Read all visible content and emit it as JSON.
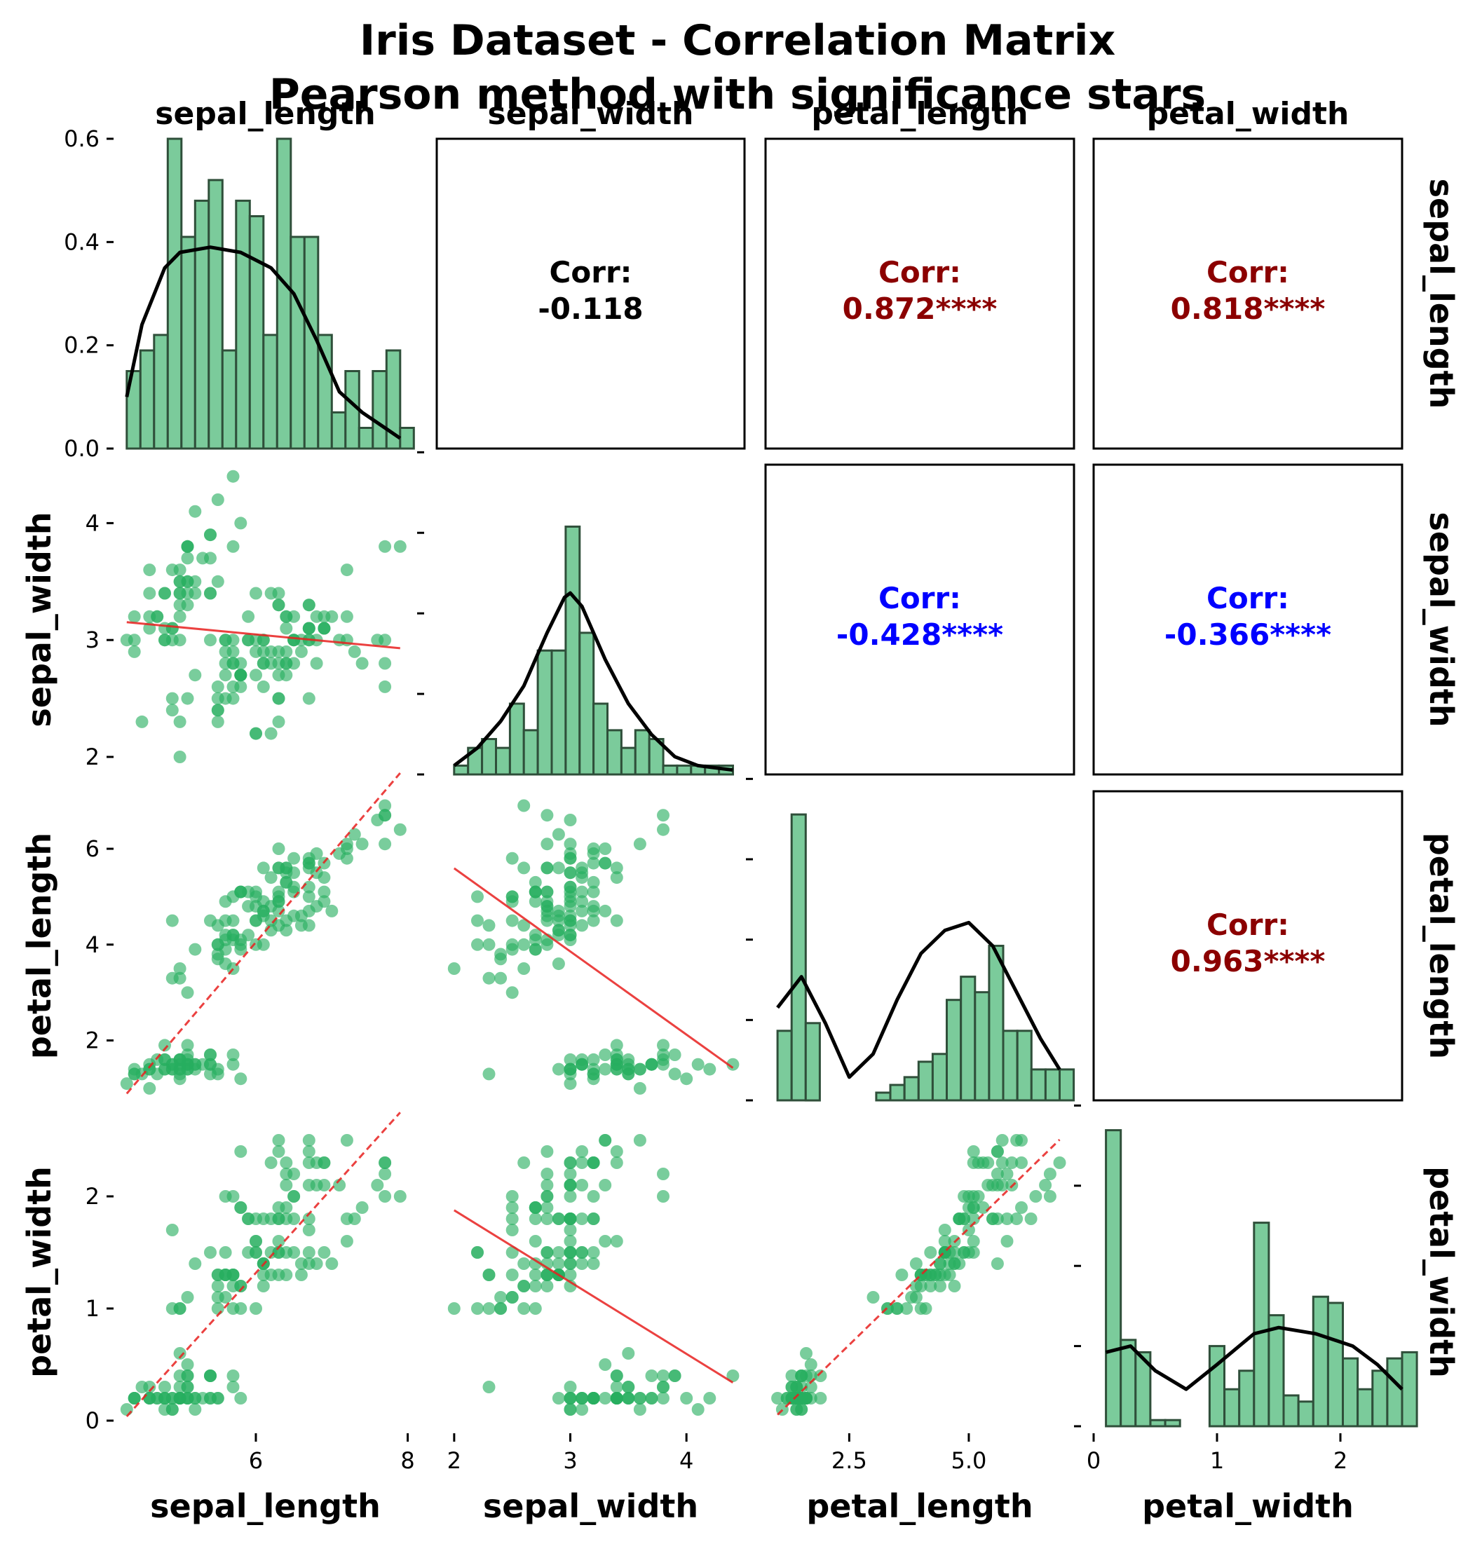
{
  "colors": {
    "point": "#27ae60",
    "bar_fill": "#7bcb9b",
    "bar_edge": "#2f4f3a",
    "kde": "#000000",
    "fit": "#e8201e",
    "positive": "#8b0000",
    "negative": "#0000ff",
    "neutral": "#000000"
  },
  "chart_data": {
    "type": "scatter",
    "title": "Iris Dataset - Correlation Matrix",
    "subtitle": "Pearson method with significance stars",
    "variables": [
      "sepal_length",
      "sepal_width",
      "petal_length",
      "petal_width"
    ],
    "corr_label": "Corr:",
    "correlations": [
      {
        "row": "sepal_length",
        "col": "sepal_width",
        "value": "-0.118",
        "sign": "neutral"
      },
      {
        "row": "sepal_length",
        "col": "petal_length",
        "value": "0.872****",
        "sign": "positive"
      },
      {
        "row": "sepal_length",
        "col": "petal_width",
        "value": "0.818****",
        "sign": "positive"
      },
      {
        "row": "sepal_width",
        "col": "petal_length",
        "value": "-0.428****",
        "sign": "negative"
      },
      {
        "row": "sepal_width",
        "col": "petal_width",
        "value": "-0.366****",
        "sign": "negative"
      },
      {
        "row": "petal_length",
        "col": "petal_width",
        "value": "0.963****",
        "sign": "positive"
      }
    ],
    "axes": {
      "sepal_length": {
        "range": [
          4.2,
          8.05
        ],
        "ticks": [
          6,
          8
        ],
        "tick_labels": [
          "6",
          "8"
        ]
      },
      "sepal_width": {
        "range": [
          1.85,
          4.5
        ],
        "ticks": [
          2,
          3,
          4
        ],
        "tick_labels": [
          "2",
          "3",
          "4"
        ]
      },
      "petal_length": {
        "range": [
          0.75,
          7.2
        ],
        "ticks": [
          2,
          4,
          6
        ],
        "tick_labels": [
          "2",
          "4",
          "6"
        ],
        "x_ticks": [
          2.5,
          5.0
        ],
        "x_tick_labels": [
          "2.5",
          "5.0"
        ]
      },
      "petal_width": {
        "range": [
          -0.05,
          2.7
        ],
        "ticks": [
          0,
          1,
          2
        ],
        "tick_labels": [
          "0",
          "1",
          "2"
        ],
        "x_range": [
          0,
          2.5
        ]
      }
    },
    "histograms": {
      "sepal_length": {
        "ymax": 0.6,
        "yticks": [
          0.0,
          0.2,
          0.4,
          0.6
        ],
        "ytick_labels": [
          "0.0",
          "0.2",
          "0.4",
          "0.6"
        ],
        "bins": [
          4.3,
          4.48,
          4.66,
          4.84,
          5.02,
          5.2,
          5.38,
          5.56,
          5.74,
          5.92,
          6.1,
          6.28,
          6.46,
          6.64,
          6.82,
          7.0,
          7.18,
          7.36,
          7.54,
          7.72,
          7.9
        ],
        "density": [
          0.15,
          0.19,
          0.22,
          0.6,
          0.41,
          0.48,
          0.52,
          0.19,
          0.48,
          0.45,
          0.22,
          0.6,
          0.41,
          0.41,
          0.22,
          0.07,
          0.15,
          0.04,
          0.15,
          0.19,
          0.04
        ],
        "kde_x": [
          4.3,
          4.5,
          4.8,
          5.0,
          5.4,
          5.8,
          6.2,
          6.5,
          6.8,
          7.1,
          7.4,
          7.7,
          7.9
        ],
        "kde_y": [
          0.1,
          0.24,
          0.35,
          0.38,
          0.39,
          0.38,
          0.35,
          0.3,
          0.21,
          0.11,
          0.07,
          0.04,
          0.02
        ]
      },
      "sepal_width": {
        "ymax": 35,
        "bins": [
          2.0,
          2.12,
          2.24,
          2.36,
          2.48,
          2.6,
          2.72,
          2.84,
          2.96,
          3.08,
          3.2,
          3.32,
          3.44,
          3.56,
          3.68,
          3.8,
          3.92,
          4.04,
          4.16,
          4.28,
          4.4
        ],
        "density": [
          1,
          3,
          4,
          3,
          8,
          5,
          14,
          14,
          28,
          16,
          8,
          5,
          3,
          5,
          4,
          1,
          1,
          1,
          1,
          1
        ],
        "kde_x": [
          2.0,
          2.2,
          2.4,
          2.6,
          2.8,
          2.95,
          3.0,
          3.1,
          3.3,
          3.5,
          3.7,
          3.9,
          4.1,
          4.4
        ],
        "kde_y": [
          1,
          3,
          6,
          10,
          16,
          20,
          20.5,
          19,
          13,
          8,
          4.5,
          2,
          1,
          0.5
        ]
      },
      "petal_length": {
        "ymax": 40,
        "bins": [
          1.0,
          1.295,
          1.59,
          1.885,
          2.18,
          2.475,
          2.77,
          3.065,
          3.36,
          3.655,
          3.95,
          4.245,
          4.54,
          4.835,
          5.13,
          5.425,
          5.72,
          6.015,
          6.31,
          6.605,
          6.9
        ],
        "density": [
          9,
          37,
          10,
          0,
          0,
          0,
          0,
          1,
          2,
          3,
          5,
          6,
          13,
          16,
          14,
          20,
          9,
          9,
          4,
          4,
          4
        ],
        "kde_x": [
          1.0,
          1.5,
          2.0,
          2.5,
          3.0,
          3.5,
          4.0,
          4.5,
          5.0,
          5.5,
          6.0,
          6.5,
          6.9
        ],
        "kde_y": [
          12,
          16,
          10,
          3,
          6,
          13,
          19,
          22,
          23,
          20,
          14,
          8,
          4
        ]
      },
      "petal_width": {
        "ymax": 50,
        "bins": [
          0.1,
          0.22,
          0.34,
          0.46,
          0.58,
          0.7,
          0.82,
          0.94,
          1.06,
          1.18,
          1.3,
          1.42,
          1.54,
          1.66,
          1.78,
          1.9,
          2.02,
          2.14,
          2.26,
          2.38,
          2.5
        ],
        "density": [
          48,
          14,
          12,
          1,
          1,
          0,
          0,
          13,
          6,
          9,
          33,
          18,
          5,
          4,
          21,
          20,
          11,
          6,
          9,
          11,
          12
        ],
        "kde_x": [
          0.1,
          0.3,
          0.5,
          0.75,
          1.0,
          1.3,
          1.5,
          1.8,
          2.1,
          2.3,
          2.5
        ],
        "kde_y": [
          12,
          13,
          9,
          6,
          10,
          15,
          16,
          15,
          13,
          10,
          6
        ]
      }
    },
    "scatter_points": {
      "sepal_length": [
        5.1,
        4.9,
        4.7,
        4.6,
        5.0,
        5.4,
        4.6,
        5.0,
        4.4,
        4.9,
        5.4,
        4.8,
        4.8,
        4.3,
        5.8,
        5.7,
        5.4,
        5.1,
        5.7,
        5.1,
        5.4,
        5.1,
        4.6,
        5.1,
        4.8,
        5.0,
        5.0,
        5.2,
        5.2,
        4.7,
        4.8,
        5.4,
        5.2,
        5.5,
        4.9,
        5.0,
        5.5,
        4.9,
        4.4,
        5.1,
        5.0,
        4.5,
        4.4,
        5.0,
        5.1,
        4.8,
        5.1,
        4.6,
        5.3,
        5.0,
        7.0,
        6.4,
        6.9,
        5.5,
        6.5,
        5.7,
        6.3,
        4.9,
        6.6,
        5.2,
        5.0,
        5.9,
        6.0,
        6.1,
        5.6,
        6.7,
        5.6,
        5.8,
        6.2,
        5.6,
        5.9,
        6.1,
        6.3,
        6.1,
        6.4,
        6.6,
        6.8,
        6.7,
        6.0,
        5.7,
        5.5,
        5.5,
        5.8,
        6.0,
        5.4,
        6.0,
        6.7,
        6.3,
        5.6,
        5.5,
        5.5,
        6.1,
        5.8,
        5.0,
        5.6,
        5.7,
        5.7,
        6.2,
        5.1,
        5.7,
        6.3,
        5.8,
        7.1,
        6.3,
        6.5,
        7.6,
        4.9,
        7.3,
        6.7,
        7.2,
        6.5,
        6.4,
        6.8,
        5.7,
        5.8,
        6.4,
        6.5,
        7.7,
        7.7,
        6.0,
        6.9,
        5.6,
        7.7,
        6.3,
        6.7,
        7.2,
        6.2,
        6.1,
        6.4,
        7.2,
        7.4,
        7.9,
        6.4,
        6.3,
        6.1,
        7.7,
        6.3,
        6.4,
        6.0,
        6.9,
        6.7,
        6.9,
        5.8,
        6.8,
        6.7,
        6.7,
        6.3,
        6.5,
        6.2,
        5.9
      ],
      "sepal_width": [
        3.5,
        3.0,
        3.2,
        3.1,
        3.6,
        3.9,
        3.4,
        3.4,
        2.9,
        3.1,
        3.7,
        3.4,
        3.0,
        3.0,
        4.0,
        4.4,
        3.9,
        3.5,
        3.8,
        3.8,
        3.4,
        3.7,
        3.6,
        3.3,
        3.4,
        3.0,
        3.4,
        3.5,
        3.4,
        3.2,
        3.1,
        3.4,
        4.1,
        4.2,
        3.1,
        3.2,
        3.5,
        3.6,
        3.0,
        3.4,
        3.5,
        2.3,
        3.2,
        3.5,
        3.8,
        3.0,
        3.8,
        3.2,
        3.7,
        3.3,
        3.2,
        3.2,
        3.1,
        2.3,
        2.8,
        2.8,
        3.3,
        2.4,
        2.9,
        2.7,
        2.0,
        3.0,
        2.2,
        2.9,
        2.9,
        3.1,
        3.0,
        2.7,
        2.2,
        2.5,
        3.2,
        2.8,
        2.5,
        2.8,
        2.9,
        3.0,
        2.8,
        3.0,
        2.9,
        2.6,
        2.4,
        2.4,
        2.7,
        2.7,
        3.0,
        3.4,
        3.1,
        2.3,
        3.0,
        2.5,
        2.6,
        3.0,
        2.6,
        2.3,
        2.7,
        3.0,
        2.9,
        2.9,
        2.5,
        2.8,
        3.3,
        2.7,
        3.0,
        2.9,
        3.0,
        3.0,
        2.5,
        2.9,
        2.5,
        3.6,
        3.2,
        2.7,
        3.0,
        2.5,
        2.8,
        3.2,
        3.0,
        3.8,
        2.6,
        2.2,
        3.2,
        2.8,
        2.8,
        2.7,
        3.3,
        3.2,
        2.8,
        3.0,
        2.8,
        3.0,
        2.8,
        3.8,
        2.8,
        2.8,
        2.6,
        3.0,
        3.4,
        3.1,
        3.0,
        3.1,
        3.1,
        3.1,
        2.7,
        3.2,
        3.3,
        3.0,
        2.5,
        3.0,
        3.4,
        3.0
      ],
      "petal_length": [
        1.4,
        1.4,
        1.3,
        1.5,
        1.4,
        1.7,
        1.4,
        1.5,
        1.4,
        1.5,
        1.5,
        1.6,
        1.4,
        1.1,
        1.2,
        1.5,
        1.3,
        1.4,
        1.7,
        1.5,
        1.7,
        1.5,
        1.0,
        1.7,
        1.9,
        1.6,
        1.6,
        1.5,
        1.4,
        1.6,
        1.6,
        1.5,
        1.5,
        1.4,
        1.5,
        1.2,
        1.3,
        1.4,
        1.3,
        1.5,
        1.3,
        1.3,
        1.3,
        1.6,
        1.9,
        1.4,
        1.6,
        1.4,
        1.5,
        1.4,
        4.7,
        4.5,
        4.9,
        4.0,
        4.6,
        4.5,
        4.7,
        3.3,
        4.6,
        3.9,
        3.5,
        4.2,
        4.0,
        4.7,
        3.6,
        4.4,
        4.5,
        4.1,
        4.5,
        3.9,
        4.8,
        4.0,
        4.9,
        4.7,
        4.3,
        4.4,
        4.8,
        5.0,
        4.5,
        3.5,
        3.8,
        3.7,
        3.9,
        5.1,
        4.5,
        4.5,
        4.7,
        4.4,
        4.1,
        4.0,
        4.4,
        4.6,
        4.0,
        3.3,
        4.2,
        4.2,
        4.2,
        4.3,
        3.0,
        4.1,
        6.0,
        5.1,
        5.9,
        5.6,
        5.8,
        6.6,
        4.5,
        6.3,
        5.8,
        6.1,
        5.1,
        5.3,
        5.5,
        5.0,
        5.1,
        5.3,
        5.5,
        6.7,
        6.9,
        5.0,
        5.7,
        4.9,
        6.7,
        4.9,
        5.7,
        6.0,
        4.8,
        4.9,
        5.6,
        5.8,
        6.1,
        6.4,
        5.6,
        5.1,
        5.6,
        6.1,
        5.6,
        5.5,
        4.8,
        5.4,
        5.6,
        5.1,
        5.1,
        5.9,
        5.7,
        5.2,
        5.0,
        5.2,
        5.4,
        5.1
      ],
      "petal_width": [
        0.2,
        0.2,
        0.2,
        0.2,
        0.2,
        0.4,
        0.3,
        0.2,
        0.2,
        0.1,
        0.2,
        0.2,
        0.1,
        0.1,
        0.2,
        0.4,
        0.4,
        0.3,
        0.3,
        0.3,
        0.2,
        0.4,
        0.2,
        0.5,
        0.2,
        0.2,
        0.4,
        0.2,
        0.2,
        0.2,
        0.2,
        0.4,
        0.1,
        0.2,
        0.2,
        0.2,
        0.2,
        0.1,
        0.2,
        0.2,
        0.3,
        0.3,
        0.2,
        0.6,
        0.4,
        0.3,
        0.2,
        0.2,
        0.2,
        0.2,
        1.4,
        1.5,
        1.5,
        1.3,
        1.5,
        1.3,
        1.6,
        1.0,
        1.3,
        1.4,
        1.0,
        1.5,
        1.0,
        1.4,
        1.3,
        1.4,
        1.5,
        1.0,
        1.5,
        1.1,
        1.8,
        1.3,
        1.5,
        1.2,
        1.3,
        1.4,
        1.4,
        1.7,
        1.5,
        1.0,
        1.1,
        1.0,
        1.2,
        1.6,
        1.5,
        1.6,
        1.5,
        1.3,
        1.3,
        1.3,
        1.2,
        1.4,
        1.2,
        1.0,
        1.3,
        1.2,
        1.3,
        1.3,
        1.1,
        1.3,
        2.5,
        1.9,
        2.1,
        1.8,
        2.2,
        2.1,
        1.7,
        1.8,
        1.8,
        2.5,
        2.0,
        1.9,
        2.1,
        2.0,
        2.4,
        2.3,
        1.8,
        2.2,
        2.3,
        1.5,
        2.3,
        2.0,
        2.0,
        1.8,
        2.1,
        1.8,
        1.8,
        1.8,
        2.1,
        1.6,
        1.9,
        2.0,
        2.2,
        1.5,
        1.4,
        2.3,
        2.4,
        1.8,
        1.8,
        2.1,
        2.4,
        2.3,
        1.9,
        2.3,
        2.5,
        2.3,
        1.9,
        2.0,
        2.3,
        1.8
      ]
    }
  }
}
